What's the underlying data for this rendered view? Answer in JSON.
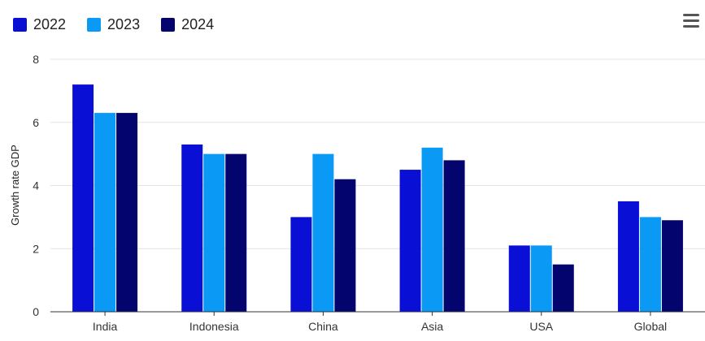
{
  "chart_data": {
    "type": "bar",
    "categories": [
      "India",
      "Indonesia",
      "China",
      "Asia",
      "USA",
      "Global"
    ],
    "series": [
      {
        "name": "2022",
        "color": "#0a0fd6",
        "values": [
          7.2,
          5.3,
          3.0,
          4.5,
          2.1,
          3.5
        ]
      },
      {
        "name": "2023",
        "color": "#0a9af5",
        "values": [
          6.3,
          5.0,
          5.0,
          5.2,
          2.1,
          3.0
        ]
      },
      {
        "name": "2024",
        "color": "#04046e",
        "values": [
          6.3,
          5.0,
          4.2,
          4.8,
          1.5,
          2.9
        ]
      }
    ],
    "title": "",
    "xlabel": "",
    "ylabel": "Growth rate GDP",
    "ylim": [
      0,
      8
    ],
    "yticks": [
      0,
      2,
      4,
      6,
      8
    ],
    "grid": true,
    "legend_position": "top-left"
  },
  "menu": {
    "icon": "hamburger-menu-icon"
  }
}
